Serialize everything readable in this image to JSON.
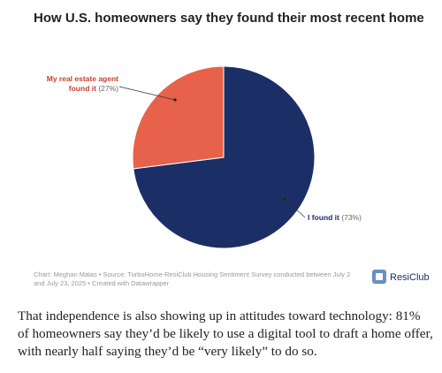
{
  "chart_data": {
    "type": "pie",
    "title": "How U.S. homeowners say they found their most recent home",
    "categories": [
      "I found it",
      "My real estate agent found it"
    ],
    "values": [
      73,
      27
    ],
    "value_labels": [
      "(73%)",
      "(27%)"
    ],
    "colors": [
      "#1b2f66",
      "#e8614a"
    ],
    "label_colors": [
      "#1b2f66",
      "#c8412f"
    ],
    "source": "Chart: Meghan Malas • Source: TurboHome-ResiClub Housing Sentiment Survey conducted between July 2 and July 23, 2025 • Created with Datawrapper",
    "brand": "ResiClub"
  },
  "article": {
    "paragraph": "That independence is also showing up in attitudes toward technology: 81% of homeowners say they’d be likely to use a digital tool to draft a home offer, with nearly half saying they’d be “very likely” to do so."
  }
}
